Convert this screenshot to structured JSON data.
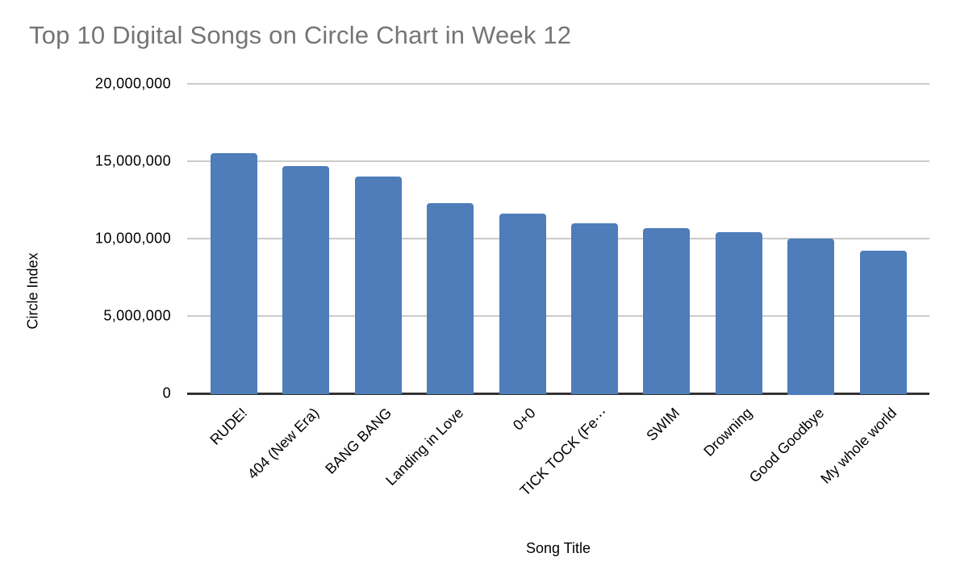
{
  "chart_data": {
    "type": "bar",
    "title": "Top 10 Digital Songs on Circle Chart in Week 12",
    "xlabel": "Song Title",
    "ylabel": "Circle Index",
    "categories": [
      "RUDE!",
      "404 (New Era)",
      "BANG BANG",
      "Landing in Love",
      "0+0",
      "TICK TOCK (Fe⋯",
      "SWIM",
      "Drowning",
      "Good Goodbye",
      "My whole world"
    ],
    "values": [
      15500000,
      14700000,
      14000000,
      12300000,
      11600000,
      11000000,
      10700000,
      10400000,
      10000000,
      9200000
    ],
    "ylim": [
      0,
      20000000
    ],
    "yticks": [
      {
        "value": 0,
        "label": "0"
      },
      {
        "value": 5000000,
        "label": "5,000,000"
      },
      {
        "value": 10000000,
        "label": "10,000,000"
      },
      {
        "value": 15000000,
        "label": "15,000,000"
      },
      {
        "value": 20000000,
        "label": "20,000,000"
      }
    ],
    "grid": true,
    "legend": false,
    "colors": {
      "bar": "#4E7DBA",
      "title_text": "#757575",
      "axis_text": "#000000",
      "gridline": "#CBCBCB",
      "axis_line": "#333333",
      "background": "#FFFFFF"
    }
  }
}
